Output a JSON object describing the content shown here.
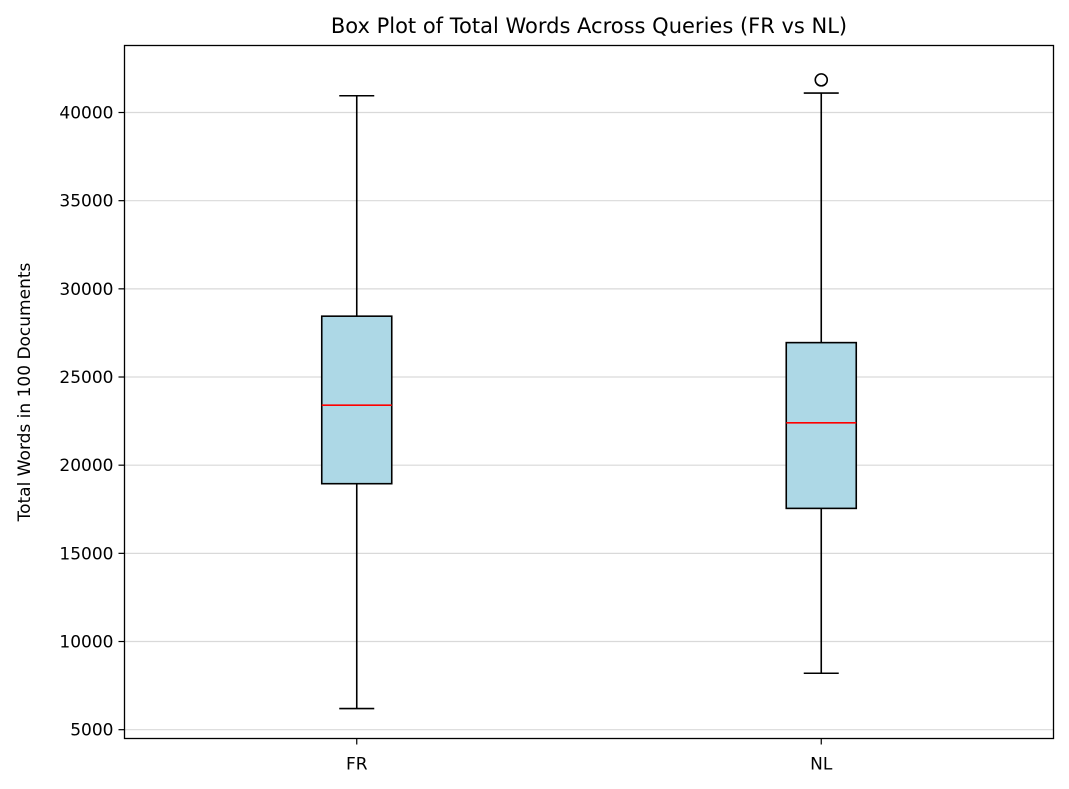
{
  "chart_data": {
    "type": "box",
    "title": "Box Plot of Total Words Across Queries (FR vs NL)",
    "xlabel": "",
    "ylabel": "Total Words in 100 Documents",
    "categories": [
      "FR",
      "NL"
    ],
    "boxes": [
      {
        "category": "FR",
        "whisker_low": 6200,
        "q1": 18950,
        "median": 23400,
        "q3": 28450,
        "whisker_high": 40950,
        "outliers": []
      },
      {
        "category": "NL",
        "whisker_low": 8200,
        "q1": 17550,
        "median": 22400,
        "q3": 26950,
        "whisker_high": 41100,
        "outliers": [
          41850
        ]
      }
    ],
    "yticks": [
      5000,
      10000,
      15000,
      20000,
      25000,
      30000,
      35000,
      40000
    ],
    "ylim": [
      4500,
      43800
    ],
    "grid": {
      "y": true,
      "x": false,
      "color": "#d9d9d9"
    },
    "colors": {
      "box_fill": "#add8e6",
      "median": "#ff0000",
      "line": "#000000"
    }
  }
}
